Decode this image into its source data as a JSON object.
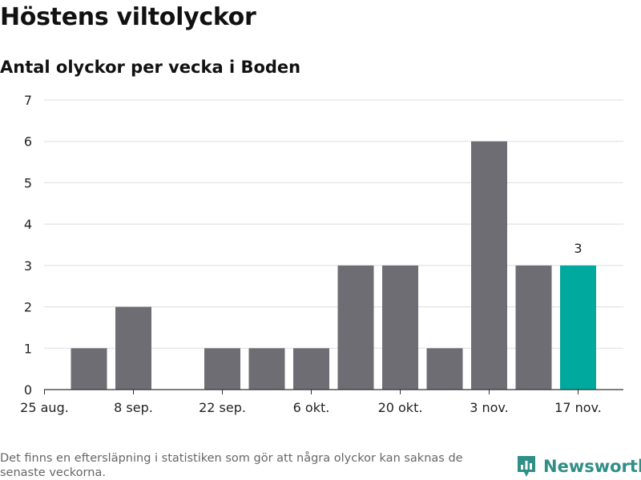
{
  "title": "Höstens viltolyckor",
  "subtitle": "Antal olyckor per vecka i Boden",
  "footnote": "Det finns en eftersläpning i statistiken som gör att några olyckor kan saknas de senaste veckorna.",
  "brand": "Newsworthy",
  "colors": {
    "bar": "#6e6d73",
    "highlight": "#00a99d",
    "grid": "#dddddd",
    "axis": "#333333",
    "brand": "#2f8f86"
  },
  "chart_data": {
    "type": "bar",
    "title": "Höstens viltolyckor",
    "subtitle": "Antal olyckor per vecka i Boden",
    "xlabel": "",
    "ylabel": "",
    "ylim": [
      0,
      7
    ],
    "yticks": [
      0,
      1,
      2,
      3,
      4,
      5,
      6,
      7
    ],
    "categories": [
      "25 aug.",
      "1 sep.",
      "8 sep.",
      "15 sep.",
      "22 sep.",
      "29 sep.",
      "6 okt.",
      "13 okt.",
      "20 okt.",
      "27 okt.",
      "3 nov.",
      "10 nov.",
      "17 nov."
    ],
    "values": [
      null,
      1,
      2,
      null,
      1,
      1,
      1,
      3,
      3,
      1,
      6,
      3,
      3
    ],
    "xtick_labels": [
      "25 aug.",
      "8 sep.",
      "22 sep.",
      "6 okt.",
      "20 okt.",
      "3 nov.",
      "17 nov."
    ],
    "highlight_index": 12,
    "data_labels": [
      {
        "index": 12,
        "text": "3"
      }
    ]
  }
}
